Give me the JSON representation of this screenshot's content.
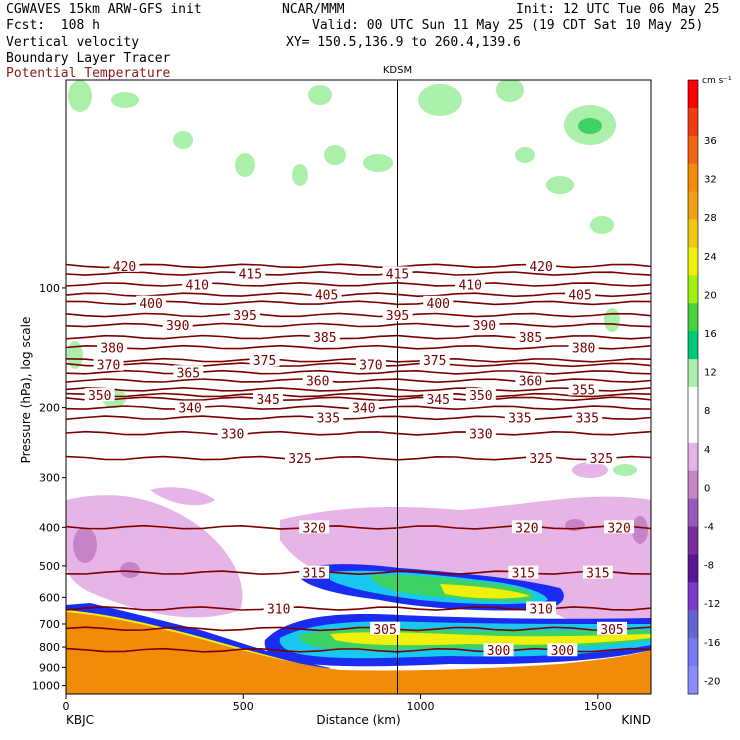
{
  "header": {
    "left_line1": "CGWAVES 15km ARW-GFS init",
    "left_line2": "Fcst:  108 h",
    "field1": "Vertical velocity",
    "field2": "Boundary Layer Tracer",
    "field3": "Potential Temperature",
    "center_line1": "NCAR/MMM",
    "init": "Init: 12 UTC Tue 06 May 25",
    "valid": "Valid: 00 UTC Sun 11 May 25 (19 CDT Sat 10 May 25)",
    "xy": "XY= 150.5,136.9 to 260.4,139.6"
  },
  "colors": {
    "theta_contour": "#7a0000",
    "ascent_dark_blue": "#1a2cf0",
    "ascent_cyan": "#19c8f0",
    "ascent_green": "#3cd264",
    "ascent_yellow": "#f0f00a",
    "weak_ascent": "#aaf0aa",
    "weak_descent": "#e6b4e6",
    "descent": "#c882c8",
    "boundary_layer": "#f08c0a"
  },
  "chart_data": {
    "type": "cross-section",
    "title": "KDSM",
    "xlabel": "Distance (km)",
    "ylabel": "Pressure (hPa), log scale",
    "x_ticks": [
      0,
      500,
      1000,
      1500
    ],
    "xlim": [
      0,
      1650
    ],
    "y_ticks": [
      100,
      200,
      300,
      400,
      500,
      600,
      700,
      800,
      900,
      1000
    ],
    "ylim": [
      1050,
      30
    ],
    "y_scale": "log",
    "start_station": "KBJC",
    "end_station": "KIND",
    "marker_station": "KDSM",
    "marker_x": 935,
    "theta_contours": [
      {
        "value": 420,
        "p": 88,
        "labels": [
          {
            "x": 165
          },
          {
            "x": 1340
          }
        ]
      },
      {
        "value": 415,
        "p": 92,
        "labels": [
          {
            "x": 520
          },
          {
            "x": 935
          }
        ]
      },
      {
        "value": 410,
        "p": 98,
        "labels": [
          {
            "x": 370
          },
          {
            "x": 1140
          }
        ]
      },
      {
        "value": 405,
        "p": 104,
        "labels": [
          {
            "x": 735
          },
          {
            "x": 1450
          }
        ]
      },
      {
        "value": 400,
        "p": 109,
        "labels": [
          {
            "x": 240
          },
          {
            "x": 1050
          }
        ]
      },
      {
        "value": 395,
        "p": 117,
        "labels": [
          {
            "x": 505
          },
          {
            "x": 935
          }
        ]
      },
      {
        "value": 390,
        "p": 124,
        "labels": [
          {
            "x": 315
          },
          {
            "x": 1180
          }
        ]
      },
      {
        "value": 385,
        "p": 133,
        "labels": [
          {
            "x": 730
          },
          {
            "x": 1310
          }
        ]
      },
      {
        "value": 380,
        "p": 141,
        "labels": [
          {
            "x": 130
          },
          {
            "x": 1460
          }
        ]
      },
      {
        "value": 375,
        "p": 152,
        "labels": [
          {
            "x": 560
          },
          {
            "x": 1040
          }
        ]
      },
      {
        "value": 370,
        "p": 156,
        "labels": [
          {
            "x": 120
          },
          {
            "x": 860
          }
        ]
      },
      {
        "value": 365,
        "p": 163,
        "labels": [
          {
            "x": 345
          }
        ]
      },
      {
        "value": 360,
        "p": 171,
        "labels": [
          {
            "x": 710
          },
          {
            "x": 1310
          }
        ]
      },
      {
        "value": 355,
        "p": 180,
        "labels": [
          {
            "x": 1460
          }
        ]
      },
      {
        "value": 350,
        "p": 186,
        "labels": [
          {
            "x": 95
          },
          {
            "x": 1170
          }
        ]
      },
      {
        "value": 345,
        "p": 190,
        "labels": [
          {
            "x": 570
          },
          {
            "x": 1050
          }
        ]
      },
      {
        "value": 340,
        "p": 200,
        "labels": [
          {
            "x": 350
          },
          {
            "x": 840
          }
        ]
      },
      {
        "value": 335,
        "p": 212,
        "labels": [
          {
            "x": 740
          },
          {
            "x": 1280
          },
          {
            "x": 1470
          }
        ]
      },
      {
        "value": 330,
        "p": 232,
        "labels": [
          {
            "x": 470
          },
          {
            "x": 1170
          }
        ]
      },
      {
        "value": 325,
        "p": 268,
        "labels": [
          {
            "x": 660
          },
          {
            "x": 1340
          },
          {
            "x": 1510
          }
        ]
      },
      {
        "value": 320,
        "p": 400,
        "labels": [
          {
            "x": 700
          },
          {
            "x": 1300
          },
          {
            "x": 1560
          }
        ]
      },
      {
        "value": 315,
        "p": 520,
        "labels": [
          {
            "x": 700
          },
          {
            "x": 1290
          },
          {
            "x": 1500
          }
        ]
      },
      {
        "value": 310,
        "p": 640,
        "labels": [
          {
            "x": 600
          },
          {
            "x": 1340
          }
        ]
      },
      {
        "value": 305,
        "p": 720,
        "labels": [
          {
            "x": 900
          },
          {
            "x": 1540
          }
        ]
      },
      {
        "value": 300,
        "p": 815,
        "labels": [
          {
            "x": 1220
          },
          {
            "x": 1400
          }
        ]
      }
    ],
    "colorbar": {
      "unit": "cm s⁻¹",
      "ticks": [
        36,
        32,
        28,
        24,
        20,
        16,
        12,
        8,
        4,
        0,
        -4,
        -8,
        -12,
        -16,
        -20
      ],
      "colors": [
        "#ff0000",
        "#f03c14",
        "#f06414",
        "#f08c0a",
        "#f0a014",
        "#f0c814",
        "#f0f00a",
        "#a0f014",
        "#46d23c",
        "#00c878",
        "#aaf0aa",
        "#ffffff",
        "#ffffff",
        "#e6b4e6",
        "#c882c8",
        "#9a58be",
        "#7a2ca0",
        "#5a1496",
        "#7a3cc8",
        "#6464d2",
        "#7878f0",
        "#8c8cff"
      ]
    }
  }
}
